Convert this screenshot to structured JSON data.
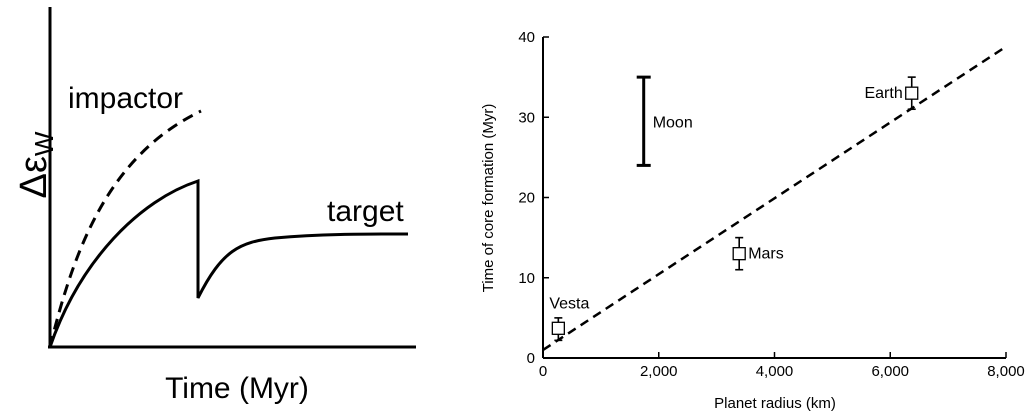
{
  "chart_data": [
    {
      "type": "line",
      "title": "",
      "xlabel": "Time (Myr)",
      "ylabel_base": "Δε",
      "ylabel_sub": "W",
      "series": [
        {
          "name": "impactor",
          "style": "dashed"
        },
        {
          "name": "target",
          "style": "solid"
        }
      ],
      "grid": false
    },
    {
      "type": "scatter",
      "title": "",
      "xlabel": "Planet radius (km)",
      "ylabel": "Time of core formation (Myr)",
      "xlim": [
        0,
        8000
      ],
      "ylim": [
        0,
        40
      ],
      "xticks": [
        0,
        2000,
        4000,
        6000,
        8000
      ],
      "xtick_labels": [
        "0",
        "2,000",
        "4,000",
        "6,000",
        "8,000"
      ],
      "yticks": [
        0,
        10,
        20,
        30,
        40
      ],
      "ytick_labels": [
        "0",
        "10",
        "20",
        "30",
        "40"
      ],
      "grid": false,
      "points": [
        {
          "label": "Vesta",
          "x": 265,
          "y": 3.7,
          "err_low": 2.2,
          "err_high": 5.0
        },
        {
          "label": "Mars",
          "x": 3390,
          "y": 13.0,
          "err_low": 11.0,
          "err_high": 15.0
        },
        {
          "label": "Earth",
          "x": 6371,
          "y": 33.0,
          "err_low": 31.0,
          "err_high": 35.0
        }
      ],
      "range_bar": {
        "label": "Moon",
        "x": 1740,
        "y_low": 24.0,
        "y_high": 35.0
      },
      "trend_line": {
        "style": "dashed",
        "x": [
          0,
          8000
        ],
        "y": [
          1.0,
          38.8
        ]
      }
    }
  ]
}
